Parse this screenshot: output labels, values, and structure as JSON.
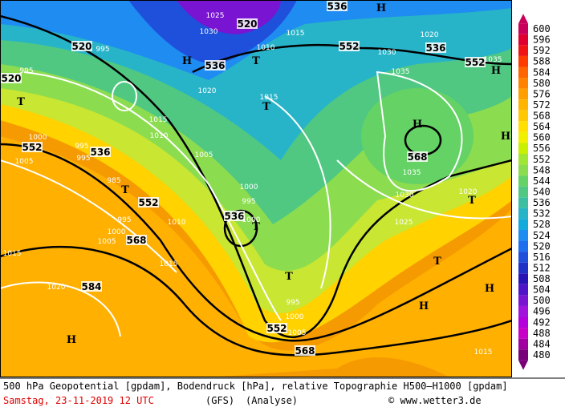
{
  "map": {
    "legend": {
      "values": [
        600,
        596,
        592,
        588,
        584,
        580,
        576,
        572,
        568,
        564,
        560,
        556,
        552,
        548,
        544,
        540,
        536,
        532,
        528,
        524,
        520,
        516,
        512,
        508,
        504,
        500,
        496,
        492,
        488,
        484,
        480
      ],
      "colors": [
        "#c8005a",
        "#e00030",
        "#f01414",
        "#ff3c00",
        "#ff6400",
        "#ff8200",
        "#ffa000",
        "#ffb400",
        "#ffc800",
        "#ffe000",
        "#f0f000",
        "#c8f000",
        "#a0e632",
        "#8cdc50",
        "#64d264",
        "#50c882",
        "#3cbea0",
        "#28b4c8",
        "#14aadc",
        "#1e8cf0",
        "#1e6ef0",
        "#1e50dc",
        "#1e32c8",
        "#2814b4",
        "#5014c8",
        "#7814d2",
        "#a014dc",
        "#b400dc",
        "#c800c8",
        "#a000a0",
        "#780078"
      ]
    },
    "map_labels": [
      "520",
      "536",
      "552",
      "552",
      "536",
      "536",
      "520",
      "552",
      "536",
      "552",
      "568",
      "584",
      "536",
      "552",
      "568",
      "568",
      "520",
      "1025",
      "1030",
      "1015",
      "1010",
      "1020",
      "1015",
      "1015",
      "1010",
      "1005",
      "1000",
      "995",
      "1010",
      "1015",
      "995",
      "1000",
      "1005",
      "1015",
      "1020",
      "995",
      "1000",
      "1005",
      "1030",
      "1035",
      "1035",
      "1030",
      "1025",
      "1020",
      "1015",
      "1020",
      "1035",
      "995",
      "995",
      "1000",
      "995",
      "995",
      "1005",
      "985",
      "1000",
      "H",
      "H",
      "T",
      "T",
      "T",
      "H",
      "H",
      "T",
      "T",
      "T",
      "T",
      "T",
      "H",
      "H",
      "H",
      "H"
    ],
    "footer": {
      "line1": "500 hPa Geopotential [gpdam], Bodendruck [hPa], relative Topographie H500—H1000 [gpdam]",
      "date": "Samstag, 23-11-2019  12 UTC",
      "model": "(GFS)",
      "run": "(Analyse)",
      "credit": "© www.wetter3.de"
    }
  }
}
